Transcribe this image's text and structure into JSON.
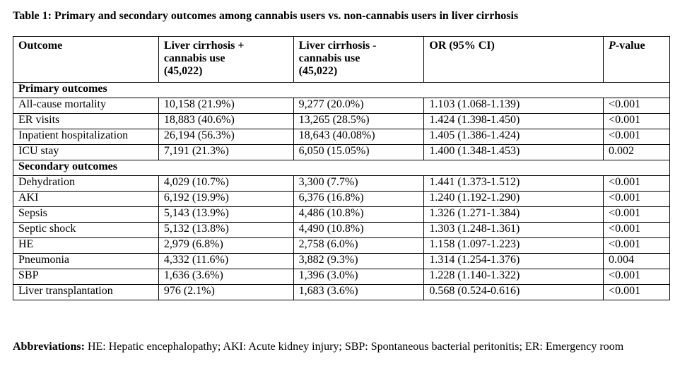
{
  "caption": "Table 1: Primary and secondary outcomes among cannabis users vs. non-cannabis users in liver cirrhosis",
  "headers": {
    "outcome": "Outcome",
    "col1_line1": "Liver cirrhosis +",
    "col1_line2": "cannabis use",
    "col1_line3": "(45,022)",
    "col2_line1": "Liver cirrhosis -",
    "col2_line2": "cannabis use",
    "col2_line3": "(45,022)",
    "or": "OR (95% CI)",
    "p_italic": "P",
    "p_rest": "-value"
  },
  "sections": {
    "primary": "Primary outcomes",
    "secondary": "Secondary outcomes"
  },
  "primary_rows": [
    {
      "outcome": "All-cause mortality",
      "with": "10,158 (21.9%)",
      "without": "9,277 (20.0%)",
      "or": "1.103 (1.068-1.139)",
      "p": "<0.001"
    },
    {
      "outcome": "ER visits",
      "with": "18,883 (40.6%)",
      "without": "13,265 (28.5%)",
      "or": "1.424 (1.398-1.450)",
      "p": "<0.001"
    },
    {
      "outcome": "Inpatient hospitalization",
      "with": "26,194 (56.3%)",
      "without": "18,643 (40.08%)",
      "or": "1.405 (1.386-1.424)",
      "p": "<0.001"
    },
    {
      "outcome": "ICU stay",
      "with": "7,191 (21.3%)",
      "without": "6,050 (15.05%)",
      "or": "1.400 (1.348-1.453)",
      "p": "0.002"
    }
  ],
  "secondary_rows": [
    {
      "outcome": "Dehydration",
      "with": "4,029 (10.7%)",
      "without": "3,300 (7.7%)",
      "or": "1.441 (1.373-1.512)",
      "p": "<0.001"
    },
    {
      "outcome": "AKI",
      "with": "6,192 (19.9%)",
      "without": "6,376 (16.8%)",
      "or": "1.240 (1.192-1.290)",
      "p": "<0.001"
    },
    {
      "outcome": "Sepsis",
      "with": "5,143 (13.9%)",
      "without": "4,486 (10.8%)",
      "or": "1.326 (1.271-1.384)",
      "p": "<0.001"
    },
    {
      "outcome": "Septic shock",
      "with": "5,132 (13.8%)",
      "without": "4,490 (10.8%)",
      "or": "1.303 (1.248-1.361)",
      "p": "<0.001"
    },
    {
      "outcome": "HE",
      "with": "2,979 (6.8%)",
      "without": "2,758 (6.0%)",
      "or": "1.158 (1.097-1.223)",
      "p": "<0.001"
    },
    {
      "outcome": "Pneumonia",
      "with": "4,332 (11.6%)",
      "without": "3,882 (9.3%)",
      "or": "1.314 (1.254-1.376)",
      "p": "0.004"
    },
    {
      "outcome": "SBP",
      "with": "1,636 (3.6%)",
      "without": "1,396 (3.0%)",
      "or": "1.228 (1.140-1.322)",
      "p": "<0.001"
    },
    {
      "outcome": "Liver transplantation",
      "with": "976 (2.1%)",
      "without": "1,683 (3.6%)",
      "or": "0.568 (0.524-0.616)",
      "p": "<0.001"
    }
  ],
  "footnote": {
    "label": "Abbreviations:",
    "text": " HE: Hepatic encephalopathy; AKI: Acute kidney injury; SBP: Spontaneous bacterial peritonitis; ER: Emergency room"
  }
}
